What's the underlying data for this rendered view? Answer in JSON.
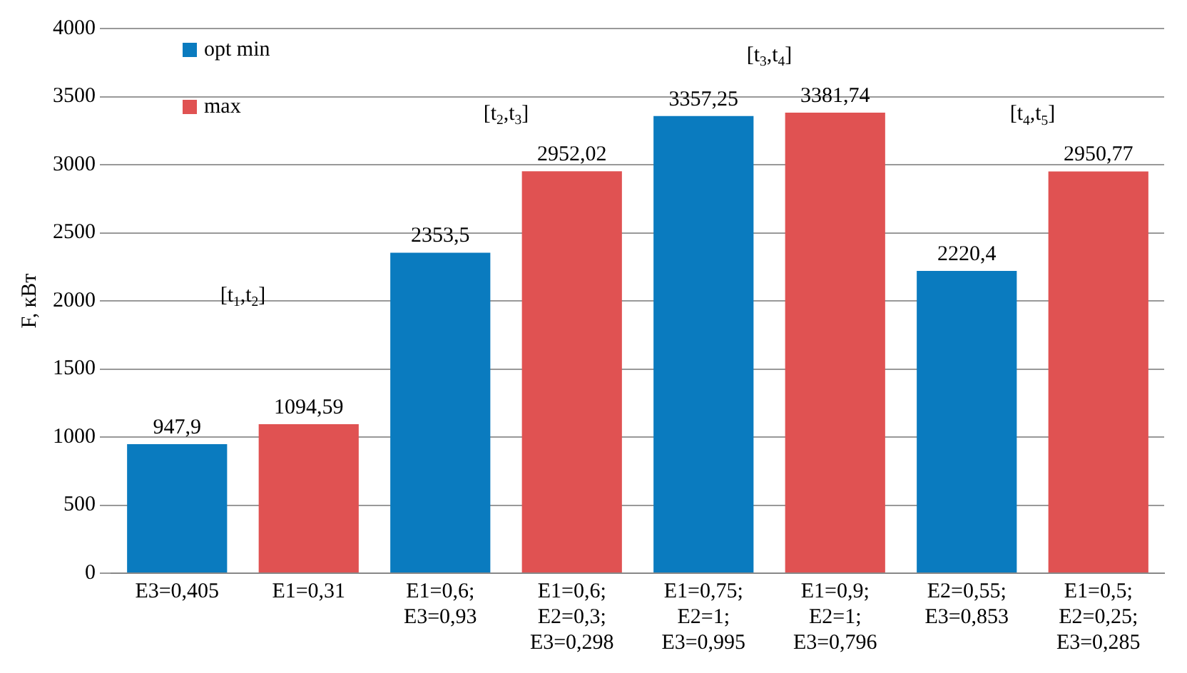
{
  "chart_data": {
    "type": "bar",
    "ylabel": "F, кВт",
    "categories": [
      "E3=0,405",
      "E1=0,31",
      "E1=0,6; E3=0,93",
      "E1=0,6; E2=0,3; E3=0,298",
      "E1=0,75; E2=1; E3=0,995",
      "E1=0,9; E2=1; E3=0,796",
      "E2=0,55; E3=0,853",
      "E1=0,5; E2=0,25; E3=0,285"
    ],
    "series": [
      {
        "name": "opt min",
        "color": "#0a7bbf",
        "values": [
          947.9,
          null,
          2353.5,
          null,
          3357.25,
          null,
          2220.4,
          null
        ],
        "value_labels": [
          "947,9",
          null,
          "2353,5",
          null,
          "3357,25",
          null,
          "2220,4",
          null
        ]
      },
      {
        "name": "max",
        "color": "#e05252",
        "values": [
          null,
          1094.59,
          null,
          2952.02,
          null,
          3381.74,
          null,
          2950.77
        ],
        "value_labels": [
          null,
          "1094,59",
          null,
          "2952,02",
          null,
          "3381,74",
          null,
          "2950,77"
        ]
      }
    ],
    "ylim": [
      0,
      4000
    ],
    "yticks": [
      0,
      500,
      1000,
      1500,
      2000,
      2500,
      3000,
      3500,
      4000
    ],
    "grid": "y",
    "legend": "top left",
    "annotations": [
      "[t$_{1}$,t$_{2}$]",
      "[t$_{2}$,t$_{3}$]",
      "[t$_{3}$,t$_{4}$]",
      "[t$_{4}$,t$_{5}$]"
    ]
  }
}
